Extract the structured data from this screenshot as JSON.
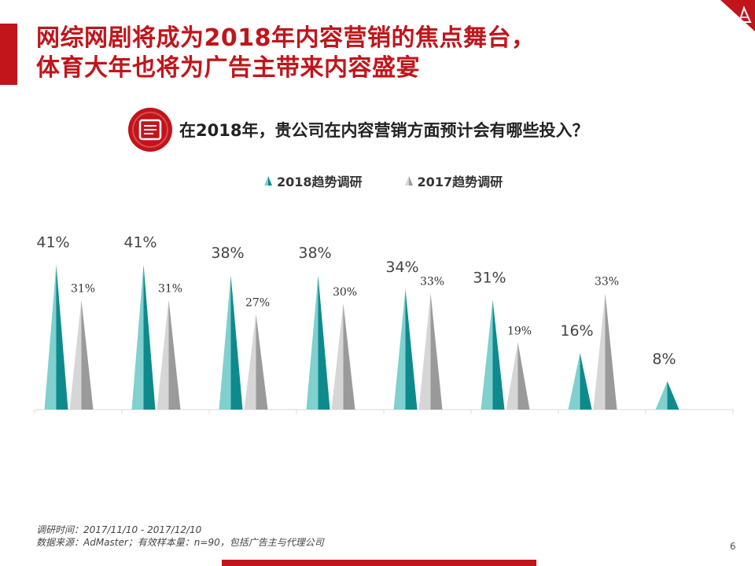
{
  "title_lines": [
    "网综网剧将成为2018年内容营销的焦点舞台，",
    "体育大年也将为广告主带来内容盛宴"
  ],
  "question": "在2018年，贵公司在内容营销方面预计会有哪些投入？",
  "footnotes": [
    "调研时间：2017/11/10 - 2017/12/10",
    "数据来源：AdMaster；有效样本量：n=90，包括广告主与代理公司"
  ],
  "page_number": "6",
  "colors": {
    "accent": "#c0151b",
    "teal_dark": "#0f8a8c",
    "teal_light": "#7fd0cf",
    "gray_dark": "#9a9a9a",
    "gray_light": "#d6d6d6"
  },
  "icons": {
    "logo": "triangle-logo-icon",
    "question": "document-list-icon"
  },
  "chart_data": {
    "type": "bar",
    "legend_position": "top",
    "ylim": [
      0,
      45
    ],
    "grid": false,
    "categories": [
      "",
      "",
      "",
      "",
      "",
      "",
      "",
      ""
    ],
    "series": [
      {
        "name": "2018趋势调研",
        "values": [
          41,
          41,
          38,
          38,
          34,
          31,
          16,
          8
        ],
        "labels": [
          "41%",
          "41%",
          "38%",
          "38%",
          "34%",
          "31%",
          "16%",
          "8%"
        ]
      },
      {
        "name": "2017趋势调研",
        "values": [
          31,
          31,
          27,
          30,
          33,
          19,
          33,
          null
        ],
        "labels": [
          "31%",
          "31%",
          "27%",
          "30%",
          "33%",
          "19%",
          "33%",
          ""
        ]
      }
    ]
  }
}
